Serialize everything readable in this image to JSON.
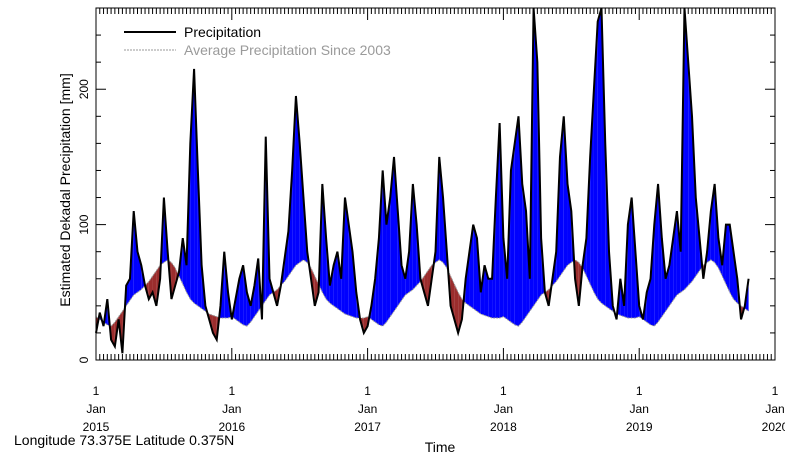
{
  "chart_data": {
    "type": "line",
    "title": "",
    "xlabel": "Time",
    "ylabel": "Estimated Dekadal Precipitation [mm]",
    "caption": "Longitude 73.375E Latitude 0.375N",
    "ylim": [
      0,
      260
    ],
    "xlim": [
      "2015-01-01",
      "2020-01-01"
    ],
    "yticks": [
      0,
      100,
      200
    ],
    "yticks_minor_step": 20,
    "ytick_labels": [
      "0",
      "100",
      "200"
    ],
    "xticks": [
      {
        "day": "1",
        "month": "Jan",
        "year": "2015"
      },
      {
        "day": "1",
        "month": "Jan",
        "year": "2016"
      },
      {
        "day": "1",
        "month": "Jan",
        "year": "2017"
      },
      {
        "day": "1",
        "month": "Jan",
        "year": "2018"
      },
      {
        "day": "1",
        "month": "Jan",
        "year": "2019"
      },
      {
        "day": "1",
        "month": "Jan",
        "year": "2020"
      }
    ],
    "dekads_per_year": 36,
    "legend_position": "top-left",
    "grid": false,
    "fill_above_average_color": "#0000ff",
    "fill_below_average_color": "#9b2d2d",
    "series": [
      {
        "name": "Precipitation",
        "color": "#000000",
        "values": [
          20,
          35,
          25,
          45,
          15,
          10,
          30,
          5,
          55,
          60,
          110,
          80,
          70,
          55,
          45,
          50,
          40,
          60,
          120,
          80,
          45,
          55,
          65,
          90,
          70,
          160,
          215,
          140,
          70,
          40,
          30,
          20,
          15,
          40,
          80,
          50,
          30,
          45,
          60,
          70,
          50,
          40,
          55,
          75,
          30,
          165,
          60,
          50,
          40,
          55,
          75,
          95,
          140,
          195,
          160,
          120,
          80,
          60,
          40,
          50,
          130,
          90,
          55,
          70,
          80,
          60,
          120,
          100,
          80,
          50,
          30,
          20,
          25,
          40,
          60,
          90,
          140,
          100,
          120,
          150,
          110,
          70,
          60,
          80,
          130,
          100,
          60,
          50,
          40,
          60,
          80,
          150,
          120,
          80,
          40,
          30,
          20,
          30,
          60,
          80,
          100,
          90,
          50,
          70,
          60,
          60,
          120,
          175,
          90,
          60,
          140,
          160,
          180,
          130,
          110,
          60,
          290,
          220,
          90,
          50,
          40,
          60,
          80,
          150,
          180,
          130,
          110,
          60,
          40,
          70,
          90,
          150,
          200,
          250,
          280,
          160,
          80,
          40,
          30,
          60,
          40,
          100,
          120,
          80,
          40,
          30,
          50,
          60,
          100,
          130,
          90,
          60,
          70,
          90,
          110,
          80,
          300,
          220,
          180,
          120,
          90,
          60,
          80,
          110,
          130,
          90,
          70,
          100,
          100,
          80,
          60,
          30,
          40,
          60
        ]
      },
      {
        "name": "Average Precipitation Since 2003",
        "color": "#9a9a9a",
        "values": [
          32,
          30,
          28,
          26,
          25,
          28,
          32,
          36,
          40,
          44,
          48,
          50,
          52,
          55,
          58,
          62,
          66,
          70,
          72,
          74,
          72,
          68,
          62,
          56,
          50,
          45,
          42,
          40,
          38,
          36,
          34,
          33,
          32,
          31,
          31,
          31,
          32,
          30,
          28,
          26,
          25,
          28,
          32,
          36,
          40,
          44,
          48,
          50,
          52,
          55,
          58,
          62,
          66,
          70,
          72,
          74,
          72,
          68,
          62,
          56,
          50,
          45,
          42,
          40,
          38,
          36,
          34,
          33,
          32,
          31,
          31,
          31,
          32,
          30,
          28,
          26,
          25,
          28,
          32,
          36,
          40,
          44,
          48,
          50,
          52,
          55,
          58,
          62,
          66,
          70,
          72,
          74,
          72,
          68,
          62,
          56,
          50,
          45,
          42,
          40,
          38,
          36,
          34,
          33,
          32,
          31,
          31,
          31,
          32,
          30,
          28,
          26,
          25,
          28,
          32,
          36,
          40,
          44,
          48,
          50,
          52,
          55,
          58,
          62,
          66,
          70,
          72,
          74,
          72,
          68,
          62,
          56,
          50,
          45,
          42,
          40,
          38,
          36,
          34,
          33,
          32,
          31,
          31,
          31,
          32,
          30,
          28,
          26,
          25,
          28,
          32,
          36,
          40,
          44,
          48,
          50,
          52,
          55,
          58,
          62,
          66,
          70,
          72,
          74,
          72,
          68,
          62,
          56,
          50,
          45,
          42,
          40,
          38,
          36,
          34,
          33,
          32,
          31,
          31,
          31
        ]
      }
    ]
  }
}
